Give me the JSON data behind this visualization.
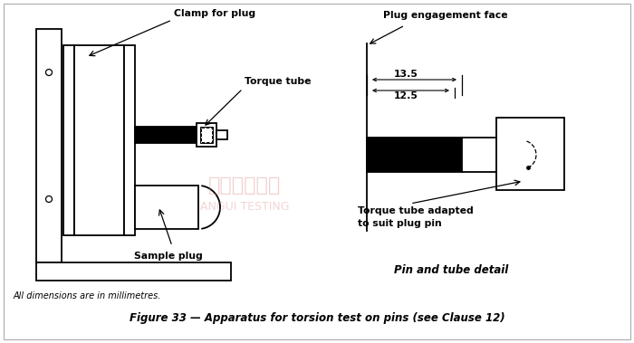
{
  "title": "Figure 33 — Apparatus for torsion test on pins (see Clause 12)",
  "note": "All dimensions are in millimetres.",
  "bg_color": "#ffffff",
  "fig_bg": "#ffffff",
  "labels": {
    "clamp_for_plug": "Clamp for plug",
    "torque_tube": "Torque tube",
    "sample_plug": "Sample plug",
    "plug_engagement_face": "Plug engagement face",
    "torque_tube_adapted": "Torque tube adapted\nto suit plug pin",
    "pin_and_tube_detail": "Pin and tube detail",
    "dim1": "13.5",
    "dim2": "12.5"
  },
  "watermark_cn": "东菞安规检测",
  "watermark_en": "ANGUI TESTING",
  "border_color": "#cccccc"
}
